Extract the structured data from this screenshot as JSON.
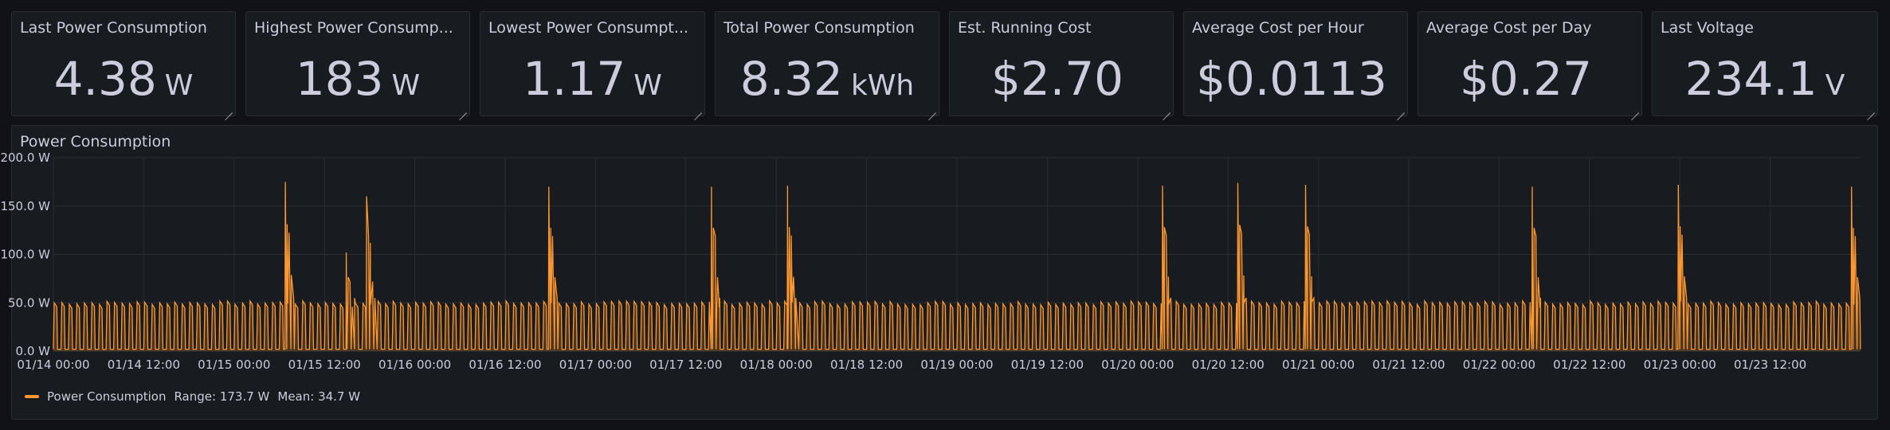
{
  "stats": [
    {
      "title": "Last Power Consumption",
      "value": "4.38",
      "unit": "W"
    },
    {
      "title": "Highest Power Consump...",
      "value": "183",
      "unit": "W"
    },
    {
      "title": "Lowest Power Consumpt...",
      "value": "1.17",
      "unit": "W"
    },
    {
      "title": "Total Power Consumption",
      "value": "8.32",
      "unit": "kWh"
    },
    {
      "title": "Est. Running Cost",
      "value": "$2.70",
      "unit": ""
    },
    {
      "title": "Average Cost per Hour",
      "value": "$0.0113",
      "unit": ""
    },
    {
      "title": "Average Cost per Day",
      "value": "$0.27",
      "unit": ""
    },
    {
      "title": "Last Voltage",
      "value": "234.1",
      "unit": "V"
    }
  ],
  "panel": {
    "title": "Power Consumption"
  },
  "legend": {
    "name": "Power Consumption",
    "range": "Range: 173.7 W",
    "mean": "Mean: 34.7 W"
  },
  "colors": {
    "series": "#ff9830",
    "background": "#181b1f",
    "grid": "#2a2d33"
  },
  "chart_data": {
    "type": "line",
    "title": "Power Consumption",
    "series_name": "Power Consumption",
    "y_ticks": [
      "0.0 W",
      "50.0 W",
      "100.0 W",
      "150.0 W",
      "200.0 W"
    ],
    "ylim": [
      0,
      200
    ],
    "x_ticks": [
      "01/14 00:00",
      "01/14 12:00",
      "01/15 00:00",
      "01/15 12:00",
      "01/16 00:00",
      "01/16 12:00",
      "01/17 00:00",
      "01/17 12:00",
      "01/18 00:00",
      "01/18 12:00",
      "01/19 00:00",
      "01/19 12:00",
      "01/20 00:00",
      "01/20 12:00",
      "01/21 00:00",
      "01/21 12:00",
      "01/22 00:00",
      "01/22 12:00",
      "01/23 00:00",
      "01/23 12:00"
    ],
    "x_range_hours": [
      0,
      240
    ],
    "baseline_w": 50,
    "baseline_cycle_hours": 1,
    "peaks": [
      {
        "hour": 30.8,
        "w": 175
      },
      {
        "hour": 38.9,
        "w": 102
      },
      {
        "hour": 41.6,
        "w": 160
      },
      {
        "hour": 65.8,
        "w": 170
      },
      {
        "hour": 87.4,
        "w": 170
      },
      {
        "hour": 97.5,
        "w": 171
      },
      {
        "hour": 147.3,
        "w": 171
      },
      {
        "hour": 157.3,
        "w": 174
      },
      {
        "hour": 166.3,
        "w": 172
      },
      {
        "hour": 196.4,
        "w": 170
      },
      {
        "hour": 215.8,
        "w": 172
      },
      {
        "hour": 238.8,
        "w": 170
      }
    ],
    "legend_position": "bottom-left",
    "grid": true
  }
}
